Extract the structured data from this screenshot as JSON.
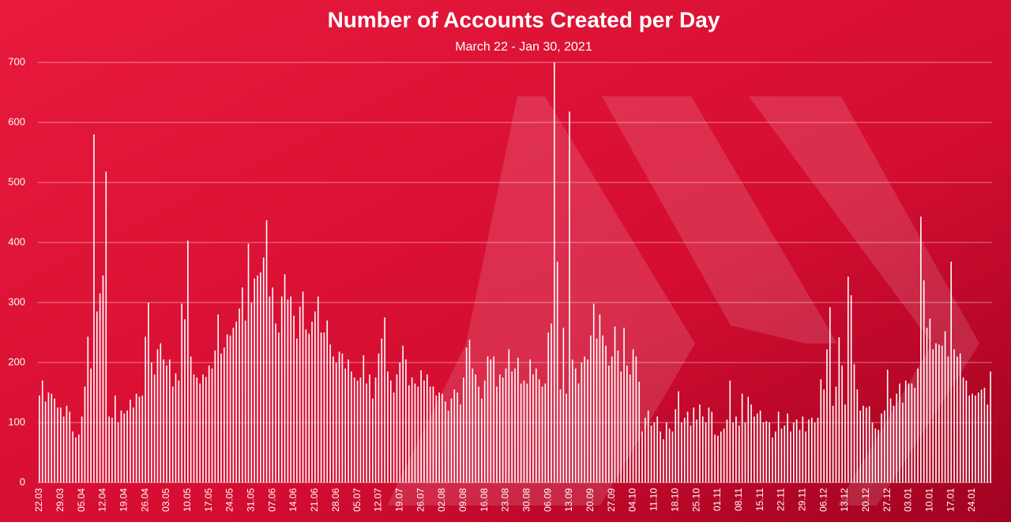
{
  "chart_data": {
    "type": "bar",
    "title": "Number of Accounts Created per Day",
    "subtitle": "March 22 - Jan 30, 2021",
    "categories": [
      "22.03",
      null,
      null,
      null,
      null,
      null,
      null,
      "29.03",
      null,
      null,
      null,
      null,
      null,
      null,
      "05.04",
      null,
      null,
      null,
      null,
      null,
      null,
      "12.04",
      null,
      null,
      null,
      null,
      null,
      null,
      "19.04",
      null,
      null,
      null,
      null,
      null,
      null,
      "26.04",
      null,
      null,
      null,
      null,
      null,
      null,
      "03.05",
      null,
      null,
      null,
      null,
      null,
      null,
      "10.05",
      null,
      null,
      null,
      null,
      null,
      null,
      "17.05",
      null,
      null,
      null,
      null,
      null,
      null,
      "24.05",
      null,
      null,
      null,
      null,
      null,
      null,
      "31.05",
      null,
      null,
      null,
      null,
      null,
      null,
      "07.06",
      null,
      null,
      null,
      null,
      null,
      null,
      "14.06",
      null,
      null,
      null,
      null,
      null,
      null,
      "21.06",
      null,
      null,
      null,
      null,
      null,
      null,
      "28.06",
      null,
      null,
      null,
      null,
      null,
      null,
      "05.07",
      null,
      null,
      null,
      null,
      null,
      null,
      "12.07",
      null,
      null,
      null,
      null,
      null,
      null,
      "19.07",
      null,
      null,
      null,
      null,
      null,
      null,
      "26.07",
      null,
      null,
      null,
      null,
      null,
      null,
      "02.08",
      null,
      null,
      null,
      null,
      null,
      null,
      "09.08",
      null,
      null,
      null,
      null,
      null,
      null,
      "16.08",
      null,
      null,
      null,
      null,
      null,
      null,
      "23.08",
      null,
      null,
      null,
      null,
      null,
      null,
      "30.08",
      null,
      null,
      null,
      null,
      null,
      null,
      "06.09",
      null,
      null,
      null,
      null,
      null,
      null,
      "13.09",
      null,
      null,
      null,
      null,
      null,
      null,
      "20.09",
      null,
      null,
      null,
      null,
      null,
      null,
      "27.09",
      null,
      null,
      null,
      null,
      null,
      null,
      "04.10",
      null,
      null,
      null,
      null,
      null,
      null,
      "11.10",
      null,
      null,
      null,
      null,
      null,
      null,
      "18.10",
      null,
      null,
      null,
      null,
      null,
      null,
      "25.10",
      null,
      null,
      null,
      null,
      null,
      null,
      "01.11",
      null,
      null,
      null,
      null,
      null,
      null,
      "08.11",
      null,
      null,
      null,
      null,
      null,
      null,
      "15.11",
      null,
      null,
      null,
      null,
      null,
      null,
      "22.11",
      null,
      null,
      null,
      null,
      null,
      null,
      "29.11",
      null,
      null,
      null,
      null,
      null,
      null,
      "06.12",
      null,
      null,
      null,
      null,
      null,
      null,
      "13.12",
      null,
      null,
      null,
      null,
      null,
      null,
      "20.12",
      null,
      null,
      null,
      null,
      null,
      null,
      "27.12",
      null,
      null,
      null,
      null,
      null,
      null,
      "03.01",
      null,
      null,
      null,
      null,
      null,
      null,
      "10.01",
      null,
      null,
      null,
      null,
      null,
      null,
      "17.01",
      null,
      null,
      null,
      null,
      null,
      null,
      "24.01",
      null,
      null,
      null,
      null,
      null,
      null
    ],
    "values": [
      145,
      170,
      135,
      150,
      148,
      140,
      125,
      125,
      110,
      128,
      118,
      85,
      75,
      80,
      110,
      160,
      243,
      190,
      580,
      285,
      315,
      345,
      518,
      110,
      108,
      145,
      100,
      120,
      115,
      120,
      138,
      125,
      148,
      143,
      145,
      243,
      300,
      200,
      180,
      222,
      232,
      205,
      195,
      205,
      160,
      182,
      170,
      298,
      272,
      403,
      210,
      180,
      175,
      165,
      180,
      176,
      195,
      190,
      220,
      280,
      215,
      225,
      247,
      245,
      258,
      268,
      290,
      325,
      270,
      398,
      300,
      340,
      345,
      350,
      375,
      437,
      310,
      325,
      265,
      250,
      310,
      347,
      305,
      310,
      278,
      240,
      293,
      318,
      255,
      248,
      268,
      285,
      310,
      250,
      250,
      270,
      230,
      210,
      200,
      218,
      215,
      190,
      205,
      185,
      175,
      170,
      175,
      212,
      165,
      180,
      140,
      175,
      215,
      240,
      275,
      185,
      170,
      150,
      180,
      200,
      228,
      205,
      162,
      175,
      165,
      160,
      187,
      170,
      180,
      160,
      160,
      145,
      150,
      148,
      135,
      120,
      140,
      155,
      150,
      130,
      175,
      225,
      238,
      190,
      180,
      160,
      140,
      170,
      210,
      205,
      210,
      160,
      180,
      175,
      190,
      222,
      185,
      190,
      208,
      165,
      170,
      165,
      205,
      180,
      190,
      172,
      160,
      165,
      250,
      265,
      700,
      368,
      155,
      258,
      148,
      618,
      205,
      190,
      165,
      200,
      210,
      205,
      245,
      298,
      240,
      280,
      245,
      228,
      195,
      210,
      260,
      220,
      185,
      258,
      195,
      180,
      222,
      210,
      168,
      85,
      108,
      120,
      95,
      100,
      110,
      85,
      72,
      100,
      90,
      85,
      122,
      152,
      100,
      108,
      118,
      95,
      125,
      105,
      130,
      110,
      100,
      125,
      118,
      80,
      78,
      85,
      90,
      105,
      170,
      100,
      110,
      95,
      148,
      100,
      143,
      130,
      110,
      115,
      120,
      100,
      102,
      100,
      75,
      85,
      118,
      90,
      95,
      115,
      85,
      100,
      105,
      88,
      110,
      85,
      105,
      108,
      100,
      108,
      172,
      155,
      222,
      292,
      128,
      160,
      242,
      195,
      130,
      343,
      312,
      197,
      155,
      120,
      128,
      125,
      127,
      100,
      90,
      88,
      115,
      120,
      188,
      140,
      128,
      148,
      165,
      133,
      170,
      165,
      165,
      158,
      190,
      443,
      337,
      258,
      273,
      222,
      232,
      230,
      228,
      252,
      210,
      368,
      222,
      210,
      215,
      175,
      170,
      145,
      148,
      145,
      150,
      155,
      158,
      130,
      185
    ],
    "color": "#ffffff",
    "ylim": [
      0,
      700
    ],
    "yticks": [
      0,
      100,
      200,
      300,
      400,
      500,
      600,
      700
    ],
    "grid": true
  }
}
